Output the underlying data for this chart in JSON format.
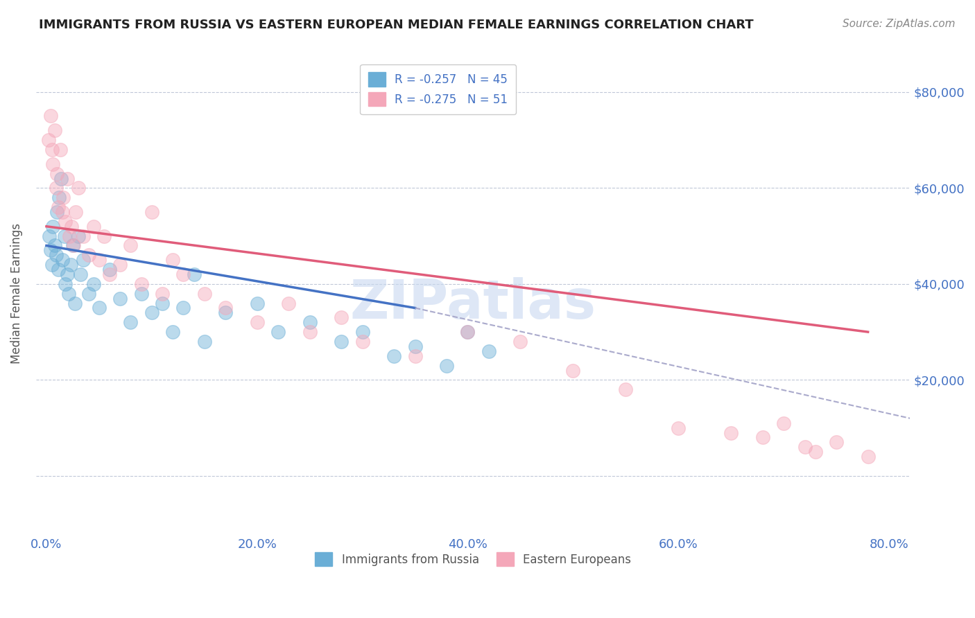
{
  "title": "IMMIGRANTS FROM RUSSIA VS EASTERN EUROPEAN MEDIAN FEMALE EARNINGS CORRELATION CHART",
  "source": "Source: ZipAtlas.com",
  "ylabel": "Median Female Earnings",
  "xlabel_ticks": [
    "0.0%",
    "20.0%",
    "40.0%",
    "60.0%",
    "80.0%"
  ],
  "xlabel_vals": [
    0.0,
    20.0,
    40.0,
    60.0,
    80.0
  ],
  "ytick_vals": [
    0,
    20000,
    40000,
    60000,
    80000
  ],
  "ytick_labels": [
    "",
    "$20,000",
    "$40,000",
    "$60,000",
    "$80,000"
  ],
  "ymax": 88000,
  "ymin": -12000,
  "xmin": -1.0,
  "xmax": 82.0,
  "blue_color": "#6aaed6",
  "pink_color": "#f4a7b9",
  "blue_line_color": "#4472c4",
  "pink_line_color": "#e05c7a",
  "dashed_color": "#aaaacc",
  "watermark": "ZIPatlas",
  "watermark_color": "#c8d8f0",
  "legend_R_blue": "R = -0.257",
  "legend_N_blue": "N = 45",
  "legend_R_pink": "R = -0.275",
  "legend_N_pink": "N = 51",
  "legend_label_blue": "Immigrants from Russia",
  "legend_label_pink": "Eastern Europeans",
  "blue_scatter_x": [
    0.3,
    0.4,
    0.5,
    0.6,
    0.8,
    0.9,
    1.0,
    1.1,
    1.2,
    1.4,
    1.5,
    1.7,
    1.8,
    2.0,
    2.1,
    2.3,
    2.5,
    2.7,
    3.0,
    3.2,
    3.5,
    4.0,
    4.5,
    5.0,
    6.0,
    7.0,
    8.0,
    9.0,
    10.0,
    11.0,
    12.0,
    13.0,
    14.0,
    15.0,
    17.0,
    20.0,
    22.0,
    25.0,
    28.0,
    30.0,
    33.0,
    35.0,
    38.0,
    40.0,
    42.0
  ],
  "blue_scatter_y": [
    50000,
    47000,
    44000,
    52000,
    48000,
    46000,
    55000,
    43000,
    58000,
    62000,
    45000,
    50000,
    40000,
    42000,
    38000,
    44000,
    48000,
    36000,
    50000,
    42000,
    45000,
    38000,
    40000,
    35000,
    43000,
    37000,
    32000,
    38000,
    34000,
    36000,
    30000,
    35000,
    42000,
    28000,
    34000,
    36000,
    30000,
    32000,
    28000,
    30000,
    25000,
    27000,
    23000,
    30000,
    26000
  ],
  "pink_scatter_x": [
    0.2,
    0.4,
    0.5,
    0.6,
    0.8,
    0.9,
    1.0,
    1.1,
    1.3,
    1.5,
    1.6,
    1.8,
    2.0,
    2.2,
    2.4,
    2.6,
    2.8,
    3.0,
    3.5,
    4.0,
    4.5,
    5.0,
    5.5,
    6.0,
    7.0,
    8.0,
    9.0,
    10.0,
    11.0,
    12.0,
    13.0,
    15.0,
    17.0,
    20.0,
    23.0,
    25.0,
    28.0,
    30.0,
    35.0,
    40.0,
    45.0,
    50.0,
    55.0,
    60.0,
    65.0,
    68.0,
    70.0,
    72.0,
    73.0,
    75.0,
    78.0
  ],
  "pink_scatter_y": [
    70000,
    75000,
    68000,
    65000,
    72000,
    60000,
    63000,
    56000,
    68000,
    55000,
    58000,
    53000,
    62000,
    50000,
    52000,
    48000,
    55000,
    60000,
    50000,
    46000,
    52000,
    45000,
    50000,
    42000,
    44000,
    48000,
    40000,
    55000,
    38000,
    45000,
    42000,
    38000,
    35000,
    32000,
    36000,
    30000,
    33000,
    28000,
    25000,
    30000,
    28000,
    22000,
    18000,
    10000,
    9000,
    8000,
    11000,
    6000,
    5000,
    7000,
    4000
  ],
  "blue_trend_x": [
    0.0,
    35.0
  ],
  "blue_trend_y": [
    48000,
    35000
  ],
  "pink_trend_x": [
    0.0,
    78.0
  ],
  "pink_trend_y": [
    52000,
    30000
  ],
  "dashed_trend_x": [
    35.0,
    82.0
  ],
  "dashed_trend_y": [
    35000,
    12000
  ],
  "bg_color": "#ffffff",
  "title_color": "#222222",
  "axis_label_color": "#4472c4",
  "grid_color": "#c0c8d8"
}
